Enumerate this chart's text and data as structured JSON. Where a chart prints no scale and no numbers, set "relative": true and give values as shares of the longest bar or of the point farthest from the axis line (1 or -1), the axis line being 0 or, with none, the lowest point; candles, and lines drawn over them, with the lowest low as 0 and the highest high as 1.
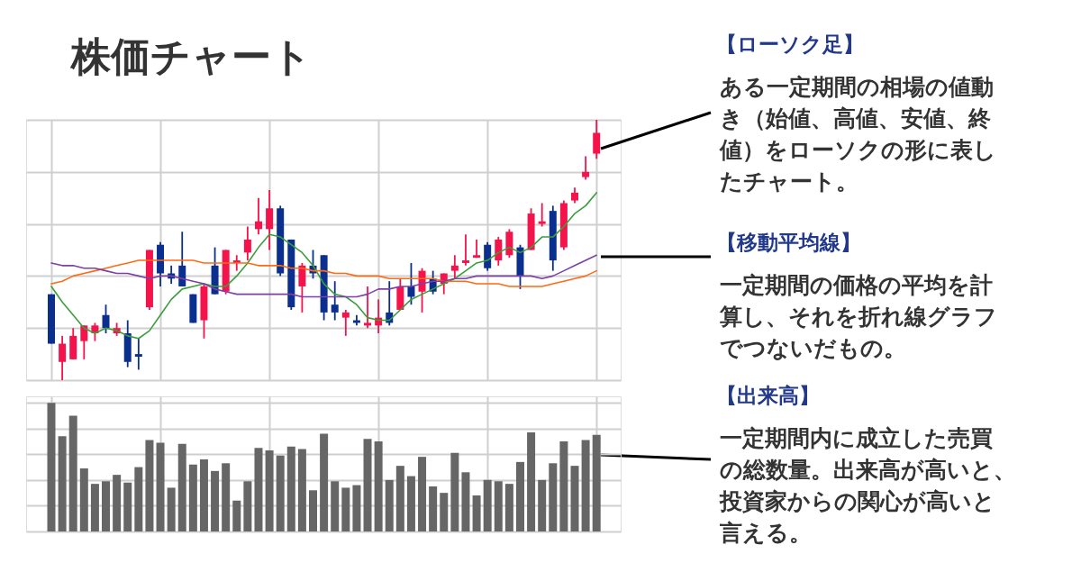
{
  "chart_data": [
    {
      "type": "candlestick",
      "title": "株価チャート",
      "relative": true,
      "grid": true,
      "categories": [
        null,
        null,
        null,
        null,
        null,
        null,
        null,
        null,
        null,
        null,
        null,
        null,
        null,
        null,
        null,
        null,
        null,
        null,
        null,
        null,
        null,
        null,
        null,
        null,
        null,
        null,
        null,
        null,
        null,
        null,
        null,
        null,
        null,
        null,
        null,
        null,
        null,
        null,
        null,
        null,
        null,
        null,
        null,
        null,
        null,
        null,
        null,
        null,
        null,
        null,
        null
      ],
      "ohlc": [
        [
          0.33,
          0.33,
          0.14,
          0.14
        ],
        [
          0.07,
          0.17,
          0,
          0.14
        ],
        [
          0.08,
          0.2,
          0.08,
          0.17
        ],
        [
          0.15,
          0.21,
          0.08,
          0.21
        ],
        [
          0.18,
          0.22,
          0.15,
          0.21
        ],
        [
          0.25,
          0.29,
          0.18,
          0.2
        ],
        [
          0.18,
          0.22,
          0.17,
          0.2
        ],
        [
          0.18,
          0.23,
          0.05,
          0.07
        ],
        [
          0.1,
          0.16,
          0.04,
          0.09
        ],
        [
          0.28,
          0.5,
          0.27,
          0.5
        ],
        [
          0.52,
          0.53,
          0.36,
          0.41
        ],
        [
          0.41,
          0.44,
          0.37,
          0.39
        ],
        [
          0.44,
          0.57,
          0.36,
          0.36
        ],
        [
          0.33,
          0.33,
          0.22,
          0.22
        ],
        [
          0.23,
          0.37,
          0.16,
          0.36
        ],
        [
          0.44,
          0.51,
          0.33,
          0.33
        ],
        [
          0.34,
          0.5,
          0.33,
          0.5
        ],
        [
          0.45,
          0.48,
          0.42,
          0.46
        ],
        [
          0.49,
          0.59,
          0.46,
          0.54
        ],
        [
          0.58,
          0.7,
          0.56,
          0.61
        ],
        [
          0.58,
          0.73,
          0.5,
          0.66
        ],
        [
          0.66,
          0.67,
          0.4,
          0.41
        ],
        [
          0.54,
          0.54,
          0.27,
          0.28
        ],
        [
          0.36,
          0.45,
          0.26,
          0.44
        ],
        [
          0.44,
          0.5,
          0.39,
          0.41
        ],
        [
          0.48,
          0.48,
          0.23,
          0.26
        ],
        [
          0.29,
          0.38,
          0.23,
          0.26
        ],
        [
          0.24,
          0.27,
          0.17,
          0.26
        ],
        [
          0.23,
          0.25,
          0.21,
          0.22
        ],
        [
          0.21,
          0.36,
          0.2,
          0.22
        ],
        [
          0.21,
          0.31,
          0.18,
          0.24
        ],
        [
          0.26,
          0.38,
          0.21,
          0.22
        ],
        [
          0.27,
          0.39,
          0.27,
          0.36
        ],
        [
          0.36,
          0.45,
          0.29,
          0.32
        ],
        [
          0.34,
          0.43,
          0.26,
          0.42
        ],
        [
          0.39,
          0.42,
          0.33,
          0.34
        ],
        [
          0.37,
          0.41,
          0.33,
          0.41
        ],
        [
          0.42,
          0.48,
          0.39,
          0.44
        ],
        [
          0.45,
          0.56,
          0.44,
          0.46
        ],
        [
          0.47,
          0.54,
          0.47,
          0.48
        ],
        [
          0.52,
          0.53,
          0.42,
          0.43
        ],
        [
          0.46,
          0.55,
          0.44,
          0.54
        ],
        [
          0.48,
          0.58,
          0.47,
          0.57
        ],
        [
          0.51,
          0.52,
          0.35,
          0.4
        ],
        [
          0.5,
          0.66,
          0.5,
          0.64
        ],
        [
          0.6,
          0.68,
          0.59,
          0.61
        ],
        [
          0.65,
          0.67,
          0.42,
          0.46
        ],
        [
          0.51,
          0.69,
          0.5,
          0.68
        ],
        [
          0.69,
          0.74,
          0.68,
          0.72
        ],
        [
          0.78,
          0.86,
          0.77,
          0.8
        ],
        [
          0.87,
          1,
          0.85,
          0.95
        ]
      ],
      "colors": [
        "#0b2f8f",
        "#f5134b",
        "#f5134b",
        "#f5134b",
        "#f5134b",
        "#0b2f8f",
        "#f5134b",
        "#0b2f8f",
        "#0b2f8f",
        "#f5134b",
        "#0b2f8f",
        "#0b2f8f",
        "#0b2f8f",
        "#0b2f8f",
        "#f5134b",
        "#0b2f8f",
        "#f5134b",
        "#f5134b",
        "#f5134b",
        "#f5134b",
        "#f5134b",
        "#0b2f8f",
        "#0b2f8f",
        "#f5134b",
        "#0b2f8f",
        "#0b2f8f",
        "#0b2f8f",
        "#f5134b",
        "#0b2f8f",
        "#f5134b",
        "#f5134b",
        "#0b2f8f",
        "#f5134b",
        "#0b2f8f",
        "#f5134b",
        "#0b2f8f",
        "#f5134b",
        "#f5134b",
        "#f5134b",
        "#f5134b",
        "#0b2f8f",
        "#f5134b",
        "#f5134b",
        "#0b2f8f",
        "#f5134b",
        "#f5134b",
        "#0b2f8f",
        "#f5134b",
        "#f5134b",
        "#f5134b",
        "#f5134b"
      ],
      "series": [
        {
          "type": "line",
          "color": "#3a9e3a",
          "values": [
            0.36,
            0.3,
            0.25,
            0.2,
            0.18,
            0.2,
            0.19,
            0.17,
            0.16,
            0.19,
            0.25,
            0.31,
            0.35,
            0.36,
            0.37,
            0.36,
            0.36,
            0.4,
            0.45,
            0.51,
            0.56,
            0.55,
            0.52,
            0.49,
            0.44,
            0.37,
            0.33,
            0.32,
            0.29,
            0.24,
            0.23,
            0.23,
            0.27,
            0.31,
            0.33,
            0.35,
            0.37,
            0.39,
            0.42,
            0.45,
            0.46,
            0.49,
            0.51,
            0.49,
            0.51,
            0.55,
            0.55,
            0.59,
            0.64,
            0.67,
            0.72
          ]
        },
        {
          "type": "line",
          "color": "#ff6a13",
          "values": [
            0.37,
            0.38,
            0.4,
            0.41,
            0.42,
            0.43,
            0.44,
            0.45,
            0.46,
            0.46,
            0.46,
            0.46,
            0.46,
            0.46,
            0.45,
            0.45,
            0.45,
            0.45,
            0.45,
            0.44,
            0.44,
            0.44,
            0.43,
            0.43,
            0.42,
            0.42,
            0.41,
            0.41,
            0.4,
            0.4,
            0.4,
            0.39,
            0.39,
            0.39,
            0.39,
            0.39,
            0.38,
            0.38,
            0.38,
            0.37,
            0.37,
            0.37,
            0.36,
            0.36,
            0.36,
            0.36,
            0.37,
            0.38,
            0.39,
            0.4,
            0.42
          ]
        },
        {
          "type": "line",
          "color": "#7d3fa8",
          "values": [
            0.45,
            0.44,
            0.44,
            0.43,
            0.43,
            0.42,
            0.41,
            0.41,
            0.4,
            0.39,
            0.4,
            0.4,
            0.39,
            0.38,
            0.37,
            0.35,
            0.34,
            0.33,
            0.33,
            0.33,
            0.33,
            0.33,
            0.33,
            0.32,
            0.32,
            0.32,
            0.32,
            0.32,
            0.32,
            0.33,
            0.35,
            0.35,
            0.36,
            0.36,
            0.37,
            0.38,
            0.38,
            0.39,
            0.39,
            0.4,
            0.4,
            0.4,
            0.4,
            0.4,
            0.4,
            0.39,
            0.4,
            0.42,
            0.44,
            0.46,
            0.48
          ]
        }
      ],
      "annotations": [
        "【ローソク足】",
        "ある一定期間の相場の値動き（始値、高値、安値、終値）をローソクの形に表したチャート。",
        "【移動平均線】",
        "一定期間の価格の平均を計算し、それを折れ線グラフでつないだもの。",
        "【出来高】",
        "一定期間内に成立した売買の総数量。出来高が高いと、投資家からの関心が高いと言える。"
      ]
    },
    {
      "type": "bar",
      "relative": true,
      "grid": true,
      "color": "#666666",
      "categories": [
        null,
        null,
        null,
        null,
        null,
        null,
        null,
        null,
        null,
        null,
        null,
        null,
        null,
        null,
        null,
        null,
        null,
        null,
        null,
        null,
        null,
        null,
        null,
        null,
        null,
        null,
        null,
        null,
        null,
        null,
        null,
        null,
        null,
        null,
        null,
        null,
        null,
        null,
        null,
        null,
        null,
        null,
        null,
        null,
        null,
        null,
        null,
        null,
        null,
        null,
        null
      ],
      "values": [
        1.0,
        0.74,
        0.9,
        0.49,
        0.37,
        0.39,
        0.44,
        0.38,
        0.5,
        0.71,
        0.69,
        0.34,
        0.68,
        0.52,
        0.56,
        0.47,
        0.53,
        0.24,
        0.39,
        0.65,
        0.63,
        0.59,
        0.66,
        0.64,
        0.32,
        0.76,
        0.39,
        0.34,
        0.36,
        0.72,
        0.7,
        0.4,
        0.51,
        0.43,
        0.58,
        0.35,
        0.3,
        0.61,
        0.46,
        0.28,
        0.4,
        0.39,
        0.37,
        0.54,
        0.77,
        0.4,
        0.53,
        0.7,
        0.51,
        0.71,
        0.75
      ]
    }
  ]
}
